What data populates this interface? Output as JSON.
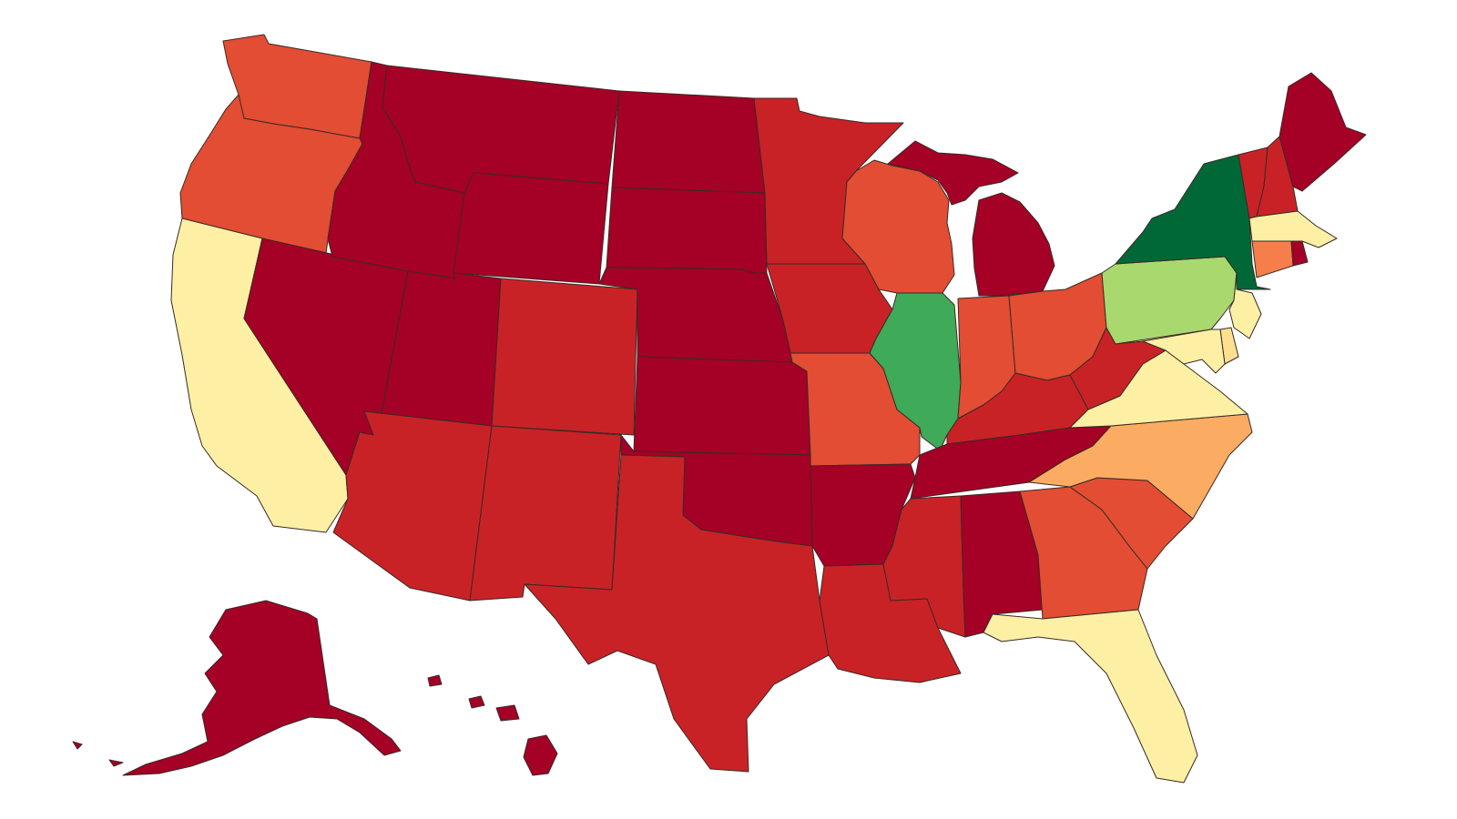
{
  "palette": {
    "c0": "#a50026",
    "c1": "#c82227",
    "c2": "#e24d33",
    "c3": "#f57e4a",
    "c4": "#fbac62",
    "c5": "#fee090",
    "c6": "#fdf0a5",
    "c7": "#a9d86e",
    "c8": "#3faa58",
    "c9": "#006837"
  },
  "states": [
    {
      "code": "WA",
      "class": "c2"
    },
    {
      "code": "OR",
      "class": "c2"
    },
    {
      "code": "CA",
      "class": "c6"
    },
    {
      "code": "NV",
      "class": "c0"
    },
    {
      "code": "ID",
      "class": "c0"
    },
    {
      "code": "MT",
      "class": "c0"
    },
    {
      "code": "WY",
      "class": "c0"
    },
    {
      "code": "UT",
      "class": "c0"
    },
    {
      "code": "AZ",
      "class": "c1"
    },
    {
      "code": "CO",
      "class": "c1"
    },
    {
      "code": "NM",
      "class": "c1"
    },
    {
      "code": "ND",
      "class": "c0"
    },
    {
      "code": "SD",
      "class": "c0"
    },
    {
      "code": "NE",
      "class": "c0"
    },
    {
      "code": "KS",
      "class": "c0"
    },
    {
      "code": "OK",
      "class": "c0"
    },
    {
      "code": "TX",
      "class": "c1"
    },
    {
      "code": "MN",
      "class": "c1"
    },
    {
      "code": "IA",
      "class": "c1"
    },
    {
      "code": "MO",
      "class": "c2"
    },
    {
      "code": "AR",
      "class": "c0"
    },
    {
      "code": "LA",
      "class": "c1"
    },
    {
      "code": "WI",
      "class": "c2"
    },
    {
      "code": "IL",
      "class": "c8"
    },
    {
      "code": "MI",
      "class": "c0"
    },
    {
      "code": "IN",
      "class": "c2"
    },
    {
      "code": "OH",
      "class": "c2"
    },
    {
      "code": "KY",
      "class": "c1"
    },
    {
      "code": "TN",
      "class": "c0"
    },
    {
      "code": "MS",
      "class": "c1"
    },
    {
      "code": "AL",
      "class": "c0"
    },
    {
      "code": "GA",
      "class": "c2"
    },
    {
      "code": "FL",
      "class": "c6"
    },
    {
      "code": "SC",
      "class": "c2"
    },
    {
      "code": "NC",
      "class": "c4"
    },
    {
      "code": "VA",
      "class": "c6"
    },
    {
      "code": "WV",
      "class": "c1"
    },
    {
      "code": "PA",
      "class": "c7"
    },
    {
      "code": "NY",
      "class": "c9"
    },
    {
      "code": "VT",
      "class": "c1"
    },
    {
      "code": "NH",
      "class": "c1"
    },
    {
      "code": "ME",
      "class": "c0"
    },
    {
      "code": "MA",
      "class": "c6"
    },
    {
      "code": "CT",
      "class": "c3"
    },
    {
      "code": "RI",
      "class": "c0"
    },
    {
      "code": "NJ",
      "class": "c6"
    },
    {
      "code": "DE",
      "class": "c5"
    },
    {
      "code": "MD",
      "class": "c6"
    },
    {
      "code": "AK",
      "class": "c0"
    },
    {
      "code": "HI",
      "class": "c0"
    }
  ]
}
